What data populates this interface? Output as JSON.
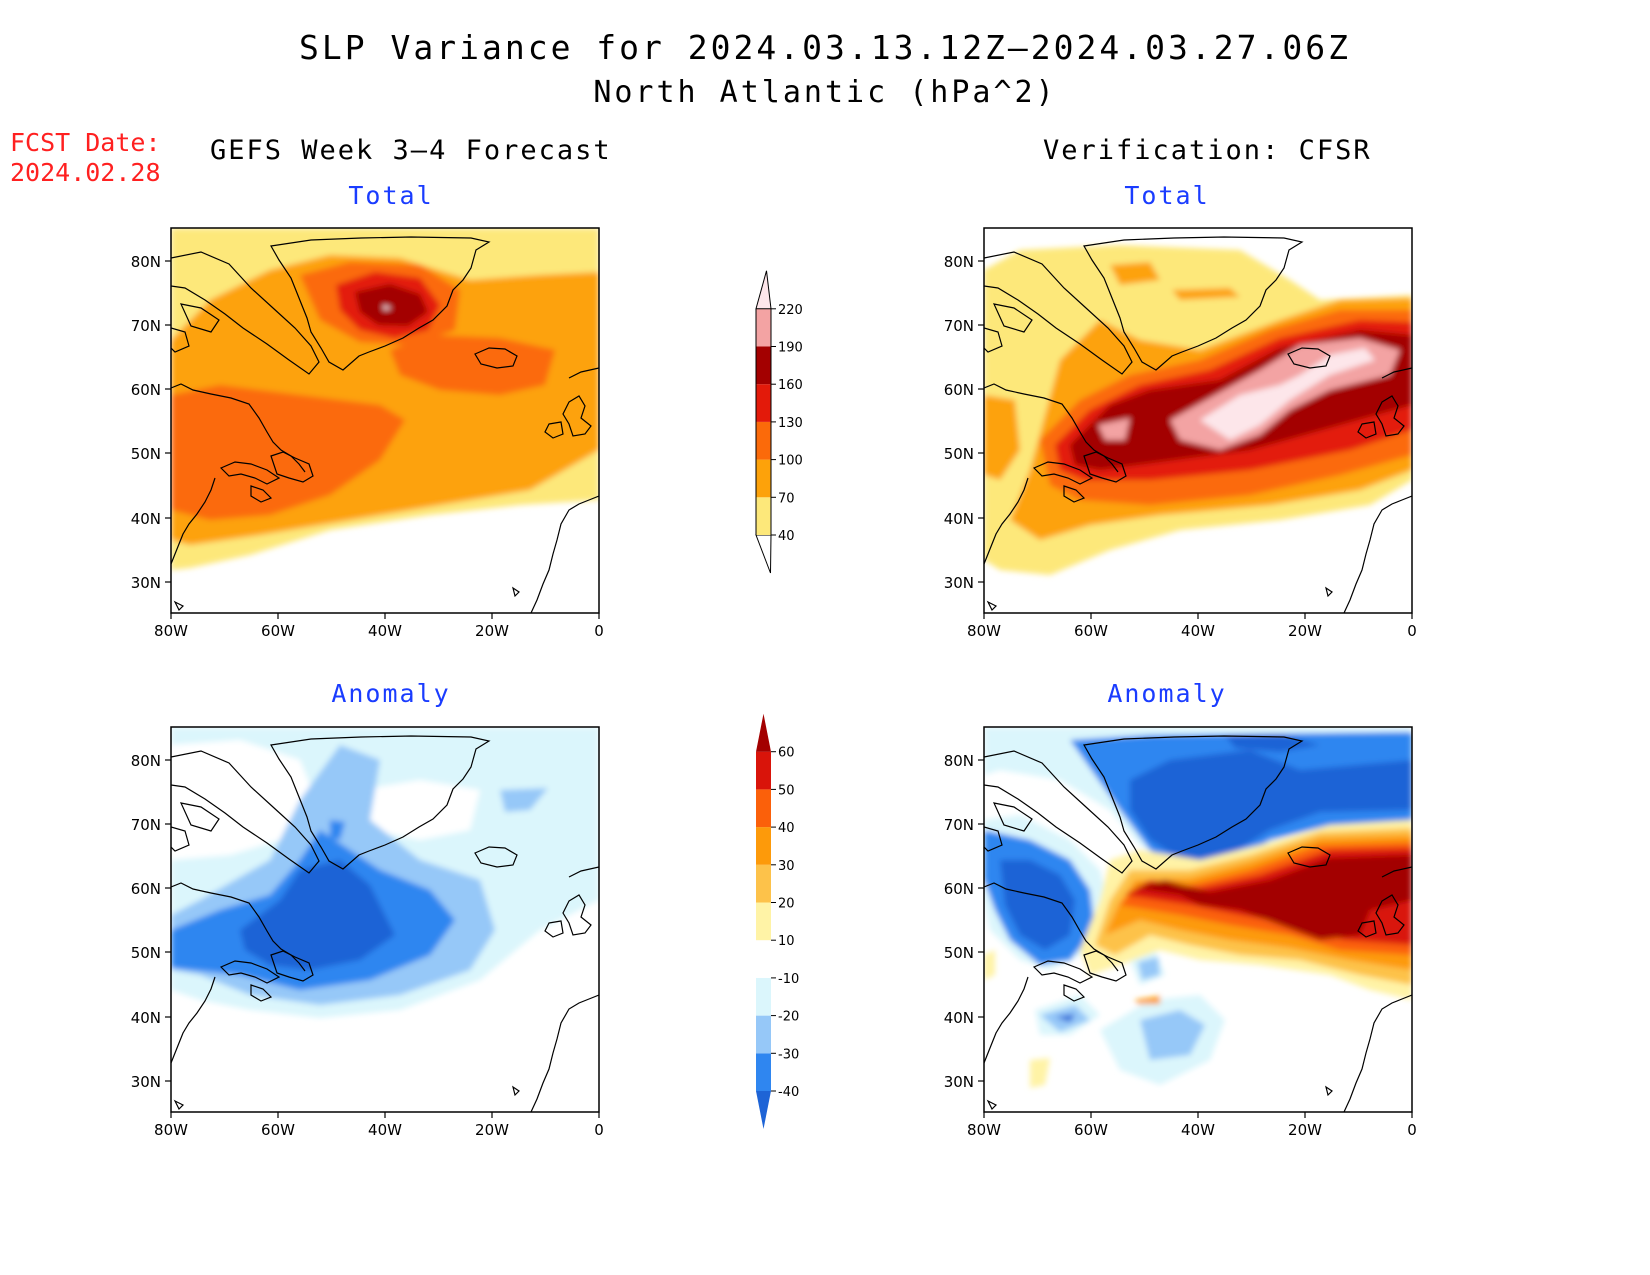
{
  "title": {
    "line1": "SLP Variance for 2024.03.13.12Z–2024.03.27.06Z",
    "line2": "North Atlantic (hPa^2)"
  },
  "fcst": {
    "label": "FCST Date:",
    "date": "2024.02.28"
  },
  "columns": {
    "left": "GEFS Week 3–4 Forecast",
    "right": "Verification: CFSR"
  },
  "panel_titles": {
    "total": "Total",
    "anomaly": "Anomaly"
  },
  "axes": {
    "lat_labels": [
      "80N",
      "70N",
      "60N",
      "50N",
      "40N",
      "30N"
    ],
    "lon_labels": [
      "80W",
      "60W",
      "40W",
      "20W",
      "0"
    ]
  },
  "colorbar_total": {
    "labels": [
      "40",
      "70",
      "100",
      "130",
      "160",
      "190",
      "220"
    ],
    "colors": [
      "#fde87a",
      "#fda20a",
      "#fb6a0a",
      "#e31a0a",
      "#a30000",
      "#f3a3a3",
      "#fde6ea"
    ]
  },
  "colorbar_anomaly": {
    "labels": [
      "-40",
      "-30",
      "-20",
      "-10",
      "10",
      "20",
      "30",
      "40",
      "50",
      "60"
    ],
    "colors": [
      "#1e64d6",
      "#2f86f0",
      "#96c8f8",
      "#dbf6fc",
      "#ffffff",
      "#fff3a6",
      "#fdc24a",
      "#fd9a0a",
      "#fb600a",
      "#d9140a",
      "#a30000"
    ]
  }
}
